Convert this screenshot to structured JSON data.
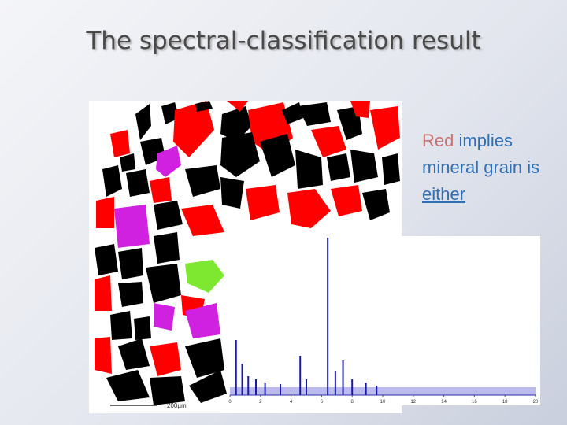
{
  "title": "The spectral-classification result",
  "body": [
    "Red",
    "implies mineral grain is",
    "either"
  ],
  "micrograph": {
    "scale_label": "200µm"
  },
  "spectrum": {
    "xlim": [
      0,
      20
    ],
    "ylim": [
      0,
      1
    ],
    "xticks": [
      0,
      2,
      4,
      6,
      8,
      10,
      12,
      14,
      16,
      18,
      20
    ],
    "color": "#1a1aa8",
    "peaks": {
      "x": [
        0.4,
        0.8,
        1.2,
        1.7,
        2.3,
        3.3,
        4.6,
        5.0,
        6.4,
        6.9,
        7.4,
        8.0,
        8.9,
        9.6
      ],
      "y": [
        0.35,
        0.2,
        0.12,
        0.1,
        0.08,
        0.07,
        0.25,
        0.1,
        1.0,
        0.15,
        0.22,
        0.1,
        0.08,
        0.06
      ]
    }
  }
}
